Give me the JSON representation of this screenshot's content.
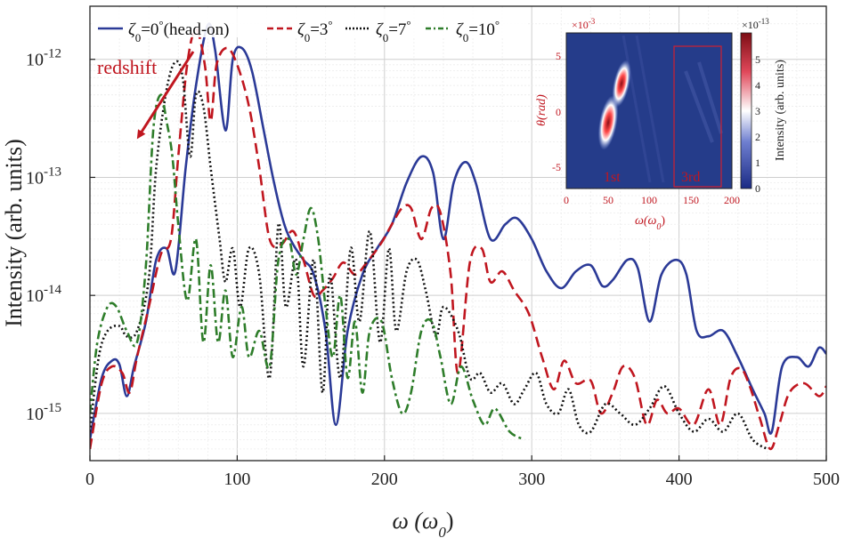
{
  "chart_data": {
    "type": "line",
    "xlabel": "ω (ω",
    "xlabel_sub": "0",
    "xlabel_close": ")",
    "ylabel": "Intensity (arb. units)",
    "xlim": [
      0,
      500
    ],
    "ylim_log10": [
      -15.4,
      -11.55
    ],
    "y_scale": "log",
    "xticks": [
      "0",
      "100",
      "200",
      "300",
      "400",
      "500"
    ],
    "yticks": [
      {
        "base": "10",
        "exp": "-12",
        "value": 1e-12
      },
      {
        "base": "10",
        "exp": "-13",
        "value": 1e-13
      },
      {
        "base": "10",
        "exp": "-14",
        "value": 1e-14
      },
      {
        "base": "10",
        "exp": "-15",
        "value": 1e-15
      }
    ],
    "grid": true,
    "legend_placement": "top",
    "annotation": {
      "text": "redshift",
      "color": "#c0161f"
    },
    "series": [
      {
        "name": "ζ0=0° (head-on)",
        "legend": {
          "sym": "ζ",
          "sub": "0",
          "eq": "=0",
          "deg": "°",
          "rest": "(head-on)"
        },
        "color": "#2b3a97",
        "dash": "solid",
        "width": 2.6,
        "points": [
          [
            0,
            6e-16
          ],
          [
            8,
            2e-15
          ],
          [
            15,
            2.8e-15
          ],
          [
            20,
            2.6e-15
          ],
          [
            25,
            1.4e-15
          ],
          [
            30,
            2.5e-15
          ],
          [
            38,
            6e-15
          ],
          [
            45,
            2e-14
          ],
          [
            52,
            2.5e-14
          ],
          [
            58,
            1.6e-14
          ],
          [
            65,
            1.2e-13
          ],
          [
            72,
            6e-13
          ],
          [
            80,
            1.95e-12
          ],
          [
            85,
            1.2e-12
          ],
          [
            92,
            2.5e-13
          ],
          [
            97,
            1e-12
          ],
          [
            103,
            1.25e-12
          ],
          [
            110,
            8e-13
          ],
          [
            118,
            2.5e-13
          ],
          [
            125,
            9e-14
          ],
          [
            132,
            4e-14
          ],
          [
            138,
            2.7e-14
          ],
          [
            145,
            2e-14
          ],
          [
            152,
            1.5e-14
          ],
          [
            160,
            5e-15
          ],
          [
            167,
            8e-16
          ],
          [
            175,
            5e-15
          ],
          [
            185,
            1.5e-14
          ],
          [
            195,
            2.5e-14
          ],
          [
            205,
            4e-14
          ],
          [
            215,
            9e-14
          ],
          [
            225,
            1.5e-13
          ],
          [
            233,
            1.1e-13
          ],
          [
            240,
            3e-14
          ],
          [
            247,
            9e-14
          ],
          [
            255,
            1.35e-13
          ],
          [
            262,
            9e-14
          ],
          [
            272,
            3e-14
          ],
          [
            282,
            4e-14
          ],
          [
            290,
            4.5e-14
          ],
          [
            300,
            3e-14
          ],
          [
            310,
            1.6e-14
          ],
          [
            320,
            1.15e-14
          ],
          [
            330,
            1.6e-14
          ],
          [
            340,
            1.8e-14
          ],
          [
            348,
            1.2e-14
          ],
          [
            355,
            1.35e-14
          ],
          [
            365,
            2e-14
          ],
          [
            372,
            1.7e-14
          ],
          [
            380,
            6e-15
          ],
          [
            388,
            1.5e-14
          ],
          [
            398,
            2e-14
          ],
          [
            405,
            1.5e-14
          ],
          [
            412,
            5e-15
          ],
          [
            420,
            4.5e-15
          ],
          [
            430,
            5e-15
          ],
          [
            440,
            3e-15
          ],
          [
            450,
            1.6e-15
          ],
          [
            458,
            1e-15
          ],
          [
            463,
            7e-16
          ],
          [
            470,
            2.5e-15
          ],
          [
            480,
            3e-15
          ],
          [
            488,
            2.5e-15
          ],
          [
            495,
            3.6e-15
          ],
          [
            500,
            3.2e-15
          ]
        ]
      },
      {
        "name": "ζ0=3°",
        "legend": {
          "sym": "ζ",
          "sub": "0",
          "eq": "=3",
          "deg": "°",
          "rest": ""
        },
        "color": "#c0161f",
        "dash": "12,6",
        "width": 2.6,
        "points": [
          [
            0,
            5e-16
          ],
          [
            8,
            1.8e-15
          ],
          [
            15,
            2.5e-15
          ],
          [
            22,
            2.2e-15
          ],
          [
            27,
            1.5e-15
          ],
          [
            32,
            3e-15
          ],
          [
            40,
            8e-15
          ],
          [
            48,
            2.2e-14
          ],
          [
            55,
            3e-14
          ],
          [
            60,
            1.5e-13
          ],
          [
            66,
            9e-13
          ],
          [
            72,
            1.8e-12
          ],
          [
            78,
            9e-13
          ],
          [
            82,
            3e-13
          ],
          [
            86,
            9e-13
          ],
          [
            93,
            1.25e-12
          ],
          [
            100,
            9e-13
          ],
          [
            108,
            4e-13
          ],
          [
            115,
            1.2e-13
          ],
          [
            122,
            3e-14
          ],
          [
            130,
            2.7e-14
          ],
          [
            138,
            3.5e-14
          ],
          [
            145,
            2e-14
          ],
          [
            152,
            1e-14
          ],
          [
            158,
            1.1e-14
          ],
          [
            165,
            1.4e-14
          ],
          [
            172,
            1.9e-14
          ],
          [
            180,
            1.5e-14
          ],
          [
            188,
            1.9e-14
          ],
          [
            198,
            2.8e-14
          ],
          [
            205,
            4e-14
          ],
          [
            212,
            5.5e-14
          ],
          [
            218,
            5.5e-14
          ],
          [
            225,
            3e-14
          ],
          [
            232,
            5.5e-14
          ],
          [
            238,
            5e-14
          ],
          [
            245,
            1.5e-14
          ],
          [
            250,
            2.2e-15
          ],
          [
            258,
            1.9e-14
          ],
          [
            266,
            2.5e-14
          ],
          [
            272,
            1.3e-14
          ],
          [
            280,
            1.6e-14
          ],
          [
            288,
            1.1e-14
          ],
          [
            298,
            7e-15
          ],
          [
            307,
            3e-15
          ],
          [
            315,
            1.6e-15
          ],
          [
            322,
            2.8e-15
          ],
          [
            330,
            1.8e-15
          ],
          [
            340,
            1.9e-15
          ],
          [
            347,
            1e-15
          ],
          [
            355,
            1.5e-15
          ],
          [
            362,
            2.5e-15
          ],
          [
            370,
            2e-15
          ],
          [
            378,
            8e-16
          ],
          [
            385,
            1.3e-15
          ],
          [
            392,
            1e-15
          ],
          [
            400,
            1.1e-15
          ],
          [
            410,
            8e-16
          ],
          [
            420,
            1.6e-15
          ],
          [
            428,
            8e-16
          ],
          [
            435,
            2e-15
          ],
          [
            442,
            2.4e-15
          ],
          [
            448,
            1.7e-15
          ],
          [
            455,
            9e-16
          ],
          [
            462,
            5e-16
          ],
          [
            468,
            8e-16
          ],
          [
            475,
            1.5e-15
          ],
          [
            485,
            1.8e-15
          ],
          [
            495,
            1.4e-15
          ],
          [
            500,
            1.7e-15
          ]
        ]
      },
      {
        "name": "ζ0=7°",
        "legend": {
          "sym": "ζ",
          "sub": "0",
          "eq": "=7",
          "deg": "°",
          "rest": ""
        },
        "color": "#111111",
        "dash": "2,3",
        "width": 2.6,
        "points": [
          [
            0,
            7e-16
          ],
          [
            6,
            3e-15
          ],
          [
            12,
            5e-15
          ],
          [
            20,
            5.5e-15
          ],
          [
            25,
            4.5e-15
          ],
          [
            32,
            5e-15
          ],
          [
            40,
            1.4e-14
          ],
          [
            45,
            1.2e-13
          ],
          [
            52,
            5.5e-13
          ],
          [
            58,
            9.5e-13
          ],
          [
            63,
            7e-13
          ],
          [
            68,
            1.5e-13
          ],
          [
            72,
            5e-13
          ],
          [
            77,
            4e-13
          ],
          [
            82,
            1.2e-13
          ],
          [
            88,
            3e-14
          ],
          [
            92,
            1.3e-14
          ],
          [
            97,
            2.5e-14
          ],
          [
            102,
            8e-15
          ],
          [
            108,
            2.5e-14
          ],
          [
            115,
            1.5e-14
          ],
          [
            122,
            2e-15
          ],
          [
            128,
            4e-14
          ],
          [
            133,
            8e-15
          ],
          [
            140,
            2e-14
          ],
          [
            145,
            2.5e-15
          ],
          [
            152,
            2e-14
          ],
          [
            158,
            1.5e-15
          ],
          [
            163,
            1.5e-14
          ],
          [
            170,
            2e-15
          ],
          [
            177,
            2.5e-14
          ],
          [
            183,
            6e-15
          ],
          [
            190,
            3.5e-14
          ],
          [
            197,
            4e-15
          ],
          [
            203,
            2.5e-14
          ],
          [
            208,
            5e-15
          ],
          [
            215,
            1.6e-14
          ],
          [
            222,
            2e-14
          ],
          [
            228,
            1.1e-14
          ],
          [
            235,
            4.5e-15
          ],
          [
            240,
            8e-15
          ],
          [
            250,
            5e-15
          ],
          [
            258,
            2e-15
          ],
          [
            265,
            2.2e-15
          ],
          [
            272,
            1.5e-15
          ],
          [
            280,
            1.8e-15
          ],
          [
            288,
            1.2e-15
          ],
          [
            295,
            1.6e-15
          ],
          [
            303,
            2.2e-15
          ],
          [
            310,
            1.2e-15
          ],
          [
            318,
            1e-15
          ],
          [
            325,
            1.6e-15
          ],
          [
            332,
            8e-16
          ],
          [
            340,
            7e-16
          ],
          [
            350,
            1.2e-15
          ],
          [
            360,
            1e-15
          ],
          [
            370,
            8e-16
          ],
          [
            380,
            1.1e-15
          ],
          [
            390,
            1.7e-15
          ],
          [
            400,
            1e-15
          ],
          [
            410,
            7e-16
          ],
          [
            420,
            9e-16
          ],
          [
            430,
            7e-16
          ],
          [
            440,
            1e-15
          ],
          [
            450,
            6e-16
          ],
          [
            460,
            5e-16
          ]
        ]
      },
      {
        "name": "ζ0=10°",
        "legend": {
          "sym": "ζ",
          "sub": "0",
          "eq": "=10",
          "deg": "°",
          "rest": ""
        },
        "color": "#2e7d2a",
        "dash": "10,4,3,4",
        "width": 2.6,
        "points": [
          [
            0,
            1e-15
          ],
          [
            5,
            4e-15
          ],
          [
            12,
            8e-15
          ],
          [
            18,
            8e-15
          ],
          [
            25,
            5e-15
          ],
          [
            32,
            4e-15
          ],
          [
            38,
            1.8e-14
          ],
          [
            43,
            2.5e-13
          ],
          [
            48,
            5e-13
          ],
          [
            52,
            3e-13
          ],
          [
            56,
            1.5e-13
          ],
          [
            60,
            4e-14
          ],
          [
            66,
            9e-15
          ],
          [
            72,
            3e-14
          ],
          [
            77,
            4e-15
          ],
          [
            82,
            1.8e-14
          ],
          [
            87,
            4e-15
          ],
          [
            92,
            1.1e-14
          ],
          [
            97,
            3e-15
          ],
          [
            103,
            8e-15
          ],
          [
            108,
            3e-15
          ],
          [
            115,
            5e-15
          ],
          [
            122,
            2.5e-15
          ],
          [
            128,
            2e-14
          ],
          [
            135,
            3e-14
          ],
          [
            140,
            1.5e-14
          ],
          [
            145,
            3e-14
          ],
          [
            150,
            5.5e-14
          ],
          [
            155,
            3e-14
          ],
          [
            160,
            8e-15
          ],
          [
            165,
            3e-15
          ],
          [
            170,
            1e-14
          ],
          [
            175,
            2e-15
          ],
          [
            180,
            6e-15
          ],
          [
            185,
            1.5e-15
          ],
          [
            190,
            5e-15
          ],
          [
            198,
            6e-15
          ],
          [
            205,
            2e-15
          ],
          [
            212,
            1e-15
          ],
          [
            218,
            1.5e-15
          ],
          [
            225,
            5e-15
          ],
          [
            232,
            6e-15
          ],
          [
            238,
            3e-15
          ],
          [
            245,
            1.2e-15
          ],
          [
            252,
            2.5e-15
          ],
          [
            260,
            1.3e-15
          ],
          [
            268,
            8e-16
          ],
          [
            275,
            1.1e-15
          ],
          [
            285,
            7e-16
          ],
          [
            295,
            6e-16
          ]
        ]
      }
    ],
    "inset": {
      "type": "heatmap",
      "xlabel": "ω(ω",
      "xlabel_sub": "0",
      "xlabel_close": ")",
      "ylabel": "θ(rad)",
      "xticks": [
        "0",
        "50",
        "100",
        "150",
        "200"
      ],
      "yticks": [
        "5",
        "0",
        "-5"
      ],
      "y_multiplier": "×10",
      "y_multiplier_exp": "-3",
      "cbar_multiplier": "×10",
      "cbar_multiplier_exp": "-13",
      "cbar_label": "Intensity (arb. units)",
      "cbar_ticks": [
        "0",
        "1",
        "2",
        "3",
        "4",
        "5"
      ],
      "labels": [
        "1st",
        "3rd"
      ],
      "background_color": "#253c8a"
    }
  }
}
